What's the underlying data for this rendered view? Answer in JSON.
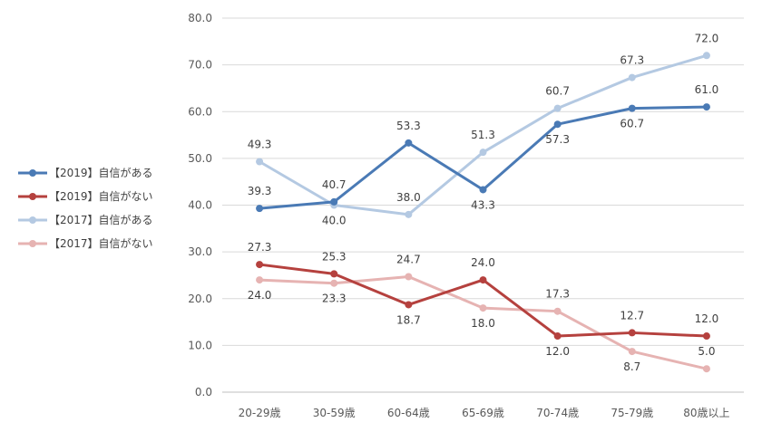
{
  "chart_data": {
    "type": "line",
    "title": "",
    "xlabel": "",
    "ylabel": "",
    "ylim": [
      0,
      80
    ],
    "yticks": [
      "0.0",
      "10.0",
      "20.0",
      "30.0",
      "40.0",
      "50.0",
      "60.0",
      "70.0",
      "80.0"
    ],
    "grid": true,
    "legend_position": "left",
    "categories": [
      "20-29歳",
      "30-59歳",
      "60-64歳",
      "65-69歳",
      "70-74歳",
      "75-79歳",
      "80歳以上"
    ],
    "series": [
      {
        "name": "【2019】自信がある",
        "color": "#4a7ab5",
        "values": [
          39.3,
          40.7,
          53.3,
          43.3,
          57.3,
          60.7,
          61.0
        ],
        "labels": [
          "39.3",
          "40.7",
          "53.3",
          "43.3",
          "57.3",
          "60.7",
          "61.0"
        ],
        "label_pos": [
          "above",
          "above",
          "above",
          "below",
          "below",
          "below",
          "above"
        ]
      },
      {
        "name": "【2019】自信がない",
        "color": "#b5413e",
        "values": [
          27.3,
          25.3,
          18.7,
          24.0,
          12.0,
          12.7,
          12.0
        ],
        "labels": [
          "27.3",
          "25.3",
          "18.7",
          "24.0",
          "12.0",
          "12.7",
          "12.0"
        ],
        "label_pos": [
          "above",
          "above",
          "below",
          "above",
          "below",
          "above",
          "above"
        ]
      },
      {
        "name": "【2017】自信がある",
        "color": "#b4c9e2",
        "values": [
          49.3,
          40.0,
          38.0,
          51.3,
          60.7,
          67.3,
          72.0
        ],
        "labels": [
          "49.3",
          "40.0",
          "38.0",
          "51.3",
          "60.7",
          "67.3",
          "72.0"
        ],
        "label_pos": [
          "above",
          "below",
          "above",
          "above",
          "above",
          "above",
          "above"
        ]
      },
      {
        "name": "【2017】自信がない",
        "color": "#e6b3b2",
        "values": [
          24.0,
          23.3,
          24.7,
          18.0,
          17.3,
          8.7,
          5.0
        ],
        "labels": [
          "24.0",
          "23.3",
          "24.7",
          "18.0",
          "17.3",
          "8.7",
          "5.0"
        ],
        "label_pos": [
          "below",
          "below",
          "above",
          "below",
          "above",
          "below",
          "above"
        ]
      }
    ]
  }
}
